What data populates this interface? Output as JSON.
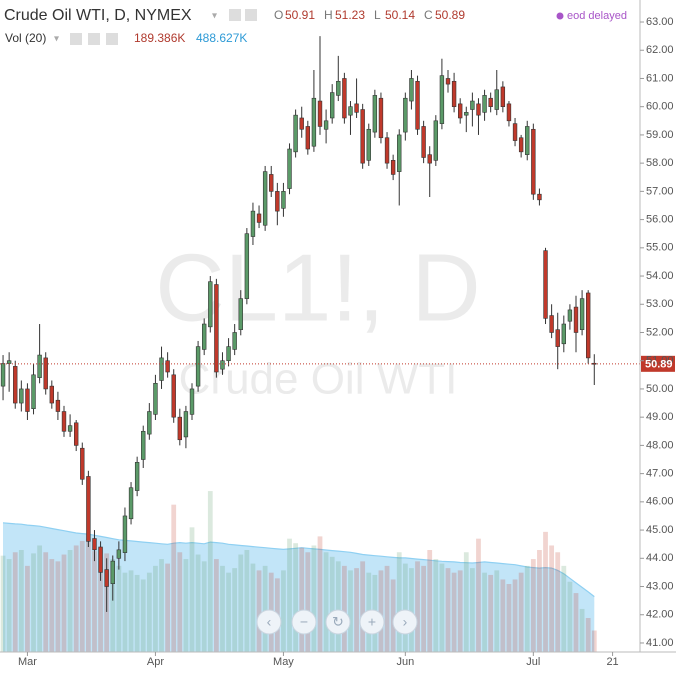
{
  "header": {
    "title": "Crude Oil WTI, D, NYMEX",
    "ohlc_labels": [
      "O",
      "H",
      "L",
      "C"
    ],
    "vol_label": "Vol (20)",
    "vol": "189.386K",
    "vol_ma": "488.627K",
    "status": "eod delayed"
  },
  "watermark": {
    "symbol": "CL1!, D",
    "name": "Crude Oil WTI"
  },
  "chart_data": {
    "type": "candlestick",
    "up_color": "#5b9a68",
    "down_color": "#c0392b",
    "volume_ma_color": "#8fd0f2",
    "xlim": [
      -0.5,
      104.5
    ],
    "ylim": [
      40.68,
      63.78
    ],
    "volume_ylim": [
      0,
      1500
    ],
    "xticks": [
      {
        "value": 4,
        "label": "Mar"
      },
      {
        "value": 25,
        "label": "Apr"
      },
      {
        "value": 46,
        "label": "May"
      },
      {
        "value": 66,
        "label": "Jun"
      },
      {
        "value": 87,
        "label": "Jul"
      },
      {
        "value": 100,
        "label": "21"
      }
    ],
    "yticks": [
      {
        "value": 41,
        "label": "41.00"
      },
      {
        "value": 42,
        "label": "42.00"
      },
      {
        "value": 43,
        "label": "43.00"
      },
      {
        "value": 44,
        "label": "44.00"
      },
      {
        "value": 45,
        "label": "45.00"
      },
      {
        "value": 46,
        "label": "46.00"
      },
      {
        "value": 47,
        "label": "47.00"
      },
      {
        "value": 48,
        "label": "48.00"
      },
      {
        "value": 49,
        "label": "49.00"
      },
      {
        "value": 50,
        "label": "50.00"
      },
      {
        "value": 51,
        "label": "51.00"
      },
      {
        "value": 52,
        "label": "52.00"
      },
      {
        "value": 53,
        "label": "53.00"
      },
      {
        "value": 54,
        "label": "54.00"
      },
      {
        "value": 55,
        "label": "55.00"
      },
      {
        "value": 56,
        "label": "56.00"
      },
      {
        "value": 57,
        "label": "57.00"
      },
      {
        "value": 58,
        "label": "58.00"
      },
      {
        "value": 59,
        "label": "59.00"
      },
      {
        "value": 60,
        "label": "60.00"
      },
      {
        "value": 61,
        "label": "61.00"
      },
      {
        "value": 62,
        "label": "62.00"
      },
      {
        "value": 63,
        "label": "63.00"
      }
    ],
    "candles": [
      [
        50.1,
        51.2,
        49.6,
        50.9
      ],
      [
        50.9,
        51.3,
        49.9,
        51.0
      ],
      [
        50.8,
        51.0,
        49.3,
        49.5
      ],
      [
        49.5,
        50.3,
        49.2,
        50.0
      ],
      [
        50.0,
        50.2,
        48.9,
        49.2
      ],
      [
        49.3,
        50.9,
        49.1,
        50.5
      ],
      [
        50.4,
        52.3,
        50.2,
        51.2
      ],
      [
        51.1,
        51.3,
        49.8,
        50.0
      ],
      [
        50.1,
        50.3,
        49.3,
        49.5
      ],
      [
        49.6,
        49.9,
        48.9,
        49.2
      ],
      [
        49.2,
        49.4,
        48.3,
        48.5
      ],
      [
        48.5,
        49.1,
        48.3,
        48.7
      ],
      [
        48.8,
        48.9,
        47.8,
        48.0
      ],
      [
        47.9,
        48.1,
        46.6,
        46.8
      ],
      [
        46.9,
        47.1,
        44.4,
        44.6
      ],
      [
        44.7,
        45.0,
        43.9,
        44.3
      ],
      [
        44.4,
        44.6,
        43.2,
        43.5
      ],
      [
        43.6,
        44.0,
        42.1,
        43.0
      ],
      [
        43.1,
        44.1,
        42.5,
        43.9
      ],
      [
        44.0,
        44.6,
        43.6,
        44.3
      ],
      [
        44.2,
        45.8,
        43.9,
        45.5
      ],
      [
        45.4,
        46.7,
        45.2,
        46.5
      ],
      [
        46.4,
        47.6,
        46.2,
        47.4
      ],
      [
        47.5,
        48.7,
        47.2,
        48.5
      ],
      [
        48.4,
        49.5,
        48.2,
        49.2
      ],
      [
        49.1,
        50.5,
        48.9,
        50.2
      ],
      [
        50.3,
        51.5,
        50.0,
        51.1
      ],
      [
        51.0,
        51.3,
        50.4,
        50.6
      ],
      [
        50.5,
        50.7,
        48.8,
        49.0
      ],
      [
        49.0,
        49.3,
        48.0,
        48.2
      ],
      [
        48.3,
        49.4,
        47.9,
        49.2
      ],
      [
        49.1,
        50.2,
        48.9,
        50.0
      ],
      [
        50.1,
        51.7,
        49.9,
        51.5
      ],
      [
        51.4,
        52.5,
        51.2,
        52.3
      ],
      [
        52.2,
        54.0,
        52.0,
        53.8
      ],
      [
        53.7,
        53.9,
        50.4,
        50.6
      ],
      [
        50.7,
        51.3,
        50.5,
        51.0
      ],
      [
        51.0,
        51.8,
        50.8,
        51.5
      ],
      [
        51.4,
        52.3,
        51.2,
        52.0
      ],
      [
        52.1,
        53.5,
        51.9,
        53.2
      ],
      [
        53.2,
        55.7,
        53.0,
        55.5
      ],
      [
        55.4,
        56.6,
        55.1,
        56.3
      ],
      [
        56.2,
        56.5,
        55.7,
        55.9
      ],
      [
        55.8,
        57.9,
        55.6,
        57.7
      ],
      [
        57.6,
        57.9,
        56.8,
        57.0
      ],
      [
        57.0,
        57.3,
        55.8,
        56.3
      ],
      [
        56.4,
        57.3,
        56.1,
        57.0
      ],
      [
        57.1,
        58.7,
        56.9,
        58.5
      ],
      [
        58.4,
        59.9,
        58.2,
        59.7
      ],
      [
        59.6,
        60.0,
        58.9,
        59.2
      ],
      [
        59.3,
        59.5,
        58.3,
        58.5
      ],
      [
        58.6,
        61.3,
        58.4,
        60.3
      ],
      [
        60.2,
        62.5,
        59.0,
        59.3
      ],
      [
        59.2,
        59.9,
        58.7,
        59.5
      ],
      [
        59.6,
        60.8,
        59.4,
        60.5
      ],
      [
        60.4,
        61.8,
        60.2,
        60.9
      ],
      [
        61.0,
        61.2,
        59.4,
        59.6
      ],
      [
        59.7,
        60.2,
        59.0,
        60.0
      ],
      [
        60.1,
        61.0,
        59.6,
        59.8
      ],
      [
        59.9,
        60.1,
        57.8,
        58.0
      ],
      [
        58.1,
        59.4,
        57.9,
        59.2
      ],
      [
        59.1,
        60.6,
        58.9,
        60.4
      ],
      [
        60.3,
        60.5,
        58.7,
        58.9
      ],
      [
        58.9,
        59.1,
        57.8,
        58.0
      ],
      [
        58.1,
        58.3,
        57.4,
        57.6
      ],
      [
        57.7,
        59.2,
        56.5,
        59.0
      ],
      [
        59.1,
        60.5,
        58.8,
        60.3
      ],
      [
        60.2,
        61.3,
        59.9,
        61.0
      ],
      [
        60.9,
        61.1,
        59.0,
        59.2
      ],
      [
        59.3,
        59.5,
        58.0,
        58.2
      ],
      [
        58.3,
        58.6,
        56.8,
        58.0
      ],
      [
        58.1,
        59.7,
        57.9,
        59.5
      ],
      [
        59.4,
        61.7,
        59.2,
        61.1
      ],
      [
        61.0,
        61.3,
        60.5,
        60.8
      ],
      [
        60.9,
        61.2,
        59.8,
        60.0
      ],
      [
        60.1,
        60.3,
        59.4,
        59.6
      ],
      [
        59.7,
        60.0,
        59.1,
        59.8
      ],
      [
        59.9,
        60.5,
        59.3,
        60.2
      ],
      [
        60.1,
        60.3,
        59.0,
        59.7
      ],
      [
        59.8,
        60.6,
        59.5,
        60.4
      ],
      [
        60.3,
        60.5,
        59.8,
        60.0
      ],
      [
        59.9,
        61.3,
        59.7,
        60.6
      ],
      [
        60.7,
        60.9,
        59.8,
        60.0
      ],
      [
        60.1,
        60.2,
        59.3,
        59.5
      ],
      [
        59.4,
        59.6,
        58.6,
        58.8
      ],
      [
        58.9,
        59.0,
        58.2,
        58.4
      ],
      [
        58.3,
        59.5,
        58.1,
        59.3
      ],
      [
        59.2,
        59.4,
        56.7,
        56.9
      ],
      [
        56.9,
        57.1,
        56.5,
        56.7
      ],
      [
        54.9,
        55.0,
        52.3,
        52.5
      ],
      [
        52.6,
        53.0,
        51.8,
        52.0
      ],
      [
        52.1,
        52.7,
        50.7,
        51.5
      ],
      [
        51.6,
        52.6,
        51.3,
        52.3
      ],
      [
        52.4,
        53.0,
        52.1,
        52.8
      ],
      [
        52.9,
        53.3,
        51.3,
        52.0
      ],
      [
        52.1,
        53.5,
        51.9,
        53.2
      ],
      [
        53.4,
        53.5,
        50.9,
        51.1
      ],
      [
        50.91,
        51.23,
        50.14,
        50.89
      ]
    ],
    "volume": [
      850,
      820,
      880,
      900,
      760,
      870,
      940,
      880,
      820,
      800,
      860,
      900,
      940,
      980,
      1000,
      890,
      920,
      870,
      820,
      760,
      700,
      720,
      680,
      640,
      700,
      760,
      820,
      780,
      1300,
      880,
      820,
      1100,
      860,
      800,
      1420,
      820,
      760,
      700,
      740,
      860,
      900,
      780,
      720,
      760,
      700,
      650,
      720,
      1000,
      960,
      920,
      880,
      940,
      1020,
      880,
      840,
      800,
      760,
      720,
      740,
      800,
      700,
      680,
      720,
      760,
      640,
      880,
      780,
      740,
      800,
      760,
      900,
      820,
      780,
      740,
      700,
      720,
      880,
      740,
      1000,
      700,
      680,
      720,
      640,
      600,
      640,
      700,
      760,
      820,
      900,
      1060,
      940,
      880,
      760,
      620,
      520,
      380,
      300,
      189.386
    ],
    "volume_ma": [
      1140,
      1135,
      1130,
      1128,
      1120,
      1115,
      1110,
      1100,
      1090,
      1080,
      1070,
      1060,
      1050,
      1045,
      1040,
      1030,
      1020,
      1010,
      1000,
      990,
      985,
      980,
      975,
      970,
      965,
      960,
      955,
      950,
      960,
      965,
      960,
      965,
      960,
      955,
      970,
      965,
      960,
      950,
      945,
      940,
      935,
      930,
      925,
      920,
      915,
      910,
      905,
      910,
      915,
      920,
      915,
      910,
      905,
      900,
      895,
      890,
      885,
      880,
      870,
      860,
      855,
      850,
      845,
      840,
      835,
      830,
      830,
      825,
      820,
      815,
      810,
      805,
      800,
      798,
      795,
      790,
      788,
      785,
      790,
      795,
      790,
      785,
      780,
      775,
      770,
      760,
      750,
      745,
      740,
      745,
      740,
      720,
      690,
      650,
      610,
      570,
      530,
      488.627
    ]
  }
}
